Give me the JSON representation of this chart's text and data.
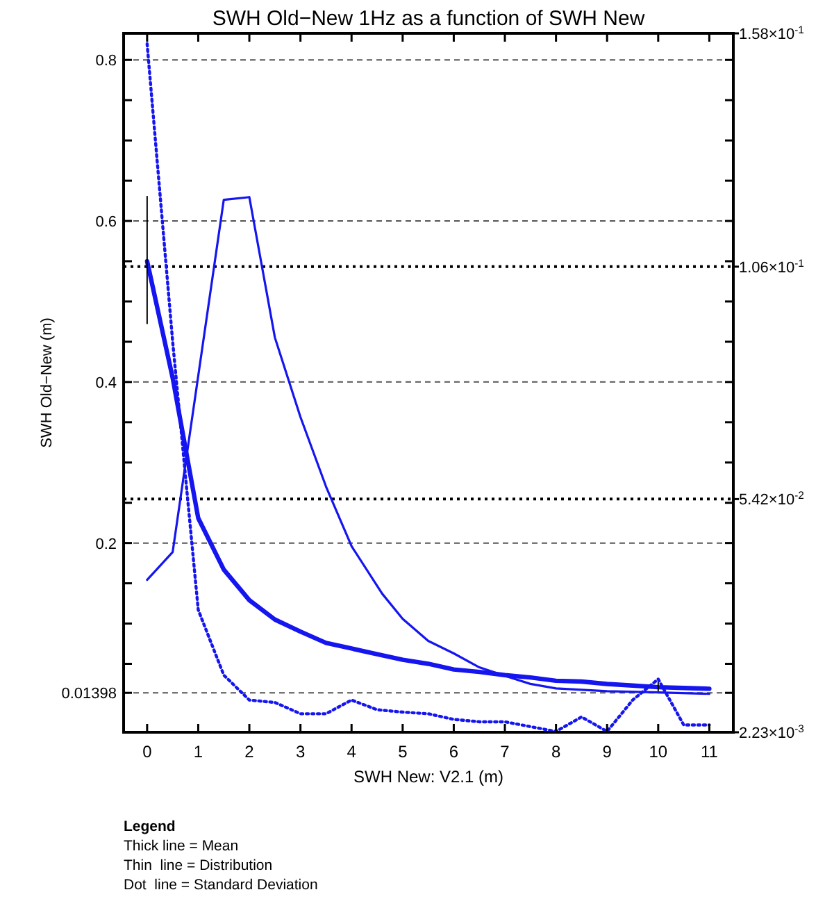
{
  "chart_data": {
    "type": "line",
    "title": "SWH Old−New 1Hz as a function of SWH New",
    "xlabel": "SWH New: V2.1 (m)",
    "ylabel": "SWH Old−New (m)",
    "x": [
      0,
      0.5,
      1,
      1.5,
      2,
      2.5,
      3,
      3.5,
      4,
      4.5,
      5,
      5.5,
      6,
      6.5,
      7,
      7.5,
      8,
      8.5,
      9,
      9.5,
      10,
      10.5,
      11
    ],
    "xlim": [
      -0.46,
      11.47
    ],
    "xticks": [
      0,
      1,
      2,
      3,
      4,
      5,
      6,
      7,
      8,
      9,
      10,
      11
    ],
    "ylim": [
      -0.035,
      0.833
    ],
    "yticks": [
      0.01398,
      {
        "value": 0.05,
        "label": null
      },
      {
        "value": 0.1,
        "label": null
      },
      {
        "value": 0.15,
        "label": null
      },
      0.2,
      {
        "value": 0.25,
        "label": null
      },
      {
        "value": 0.3,
        "label": null
      },
      {
        "value": 0.35,
        "label": null
      },
      0.4,
      {
        "value": 0.45,
        "label": null
      },
      {
        "value": 0.5,
        "label": null
      },
      {
        "value": 0.55,
        "label": null
      },
      0.6,
      {
        "value": 0.65,
        "label": null
      },
      {
        "value": 0.7,
        "label": null
      },
      {
        "value": 0.75,
        "label": null
      },
      0.8
    ],
    "y2lim": [
      0.00223,
      0.158
    ],
    "y2ticks": [
      {
        "value": 0.00223,
        "label": "2.23×10$^{-3}$"
      },
      {
        "value": 0.0542,
        "label": "5.42×10$^{-2}$"
      },
      {
        "value": 0.106,
        "label": "1.06×10$^{-1}$"
      },
      {
        "value": 0.158,
        "label": "1.58×10$^{-1}$"
      }
    ],
    "grid": "y",
    "marker": "none",
    "series": [
      {
        "color": "#1515f0",
        "line_style": "solid",
        "values": [
          0.55,
          0.405,
          0.231,
          0.167,
          0.129,
          0.105,
          0.09,
          0.076,
          0.069,
          0.062,
          0.055,
          0.05,
          0.043,
          0.04,
          0.036,
          0.033,
          0.029,
          0.028,
          0.025,
          0.023,
          0.021,
          0.02,
          0.019
        ],
        "errors": [
          [
            0.472,
            0.631
          ],
          null,
          null,
          null,
          null,
          null,
          null,
          null,
          null,
          null,
          null,
          null,
          null,
          null,
          null,
          null,
          null,
          null,
          null,
          null,
          [
            0.016,
            0.031
          ],
          null,
          null
        ]
      },
      {
        "color": "#1515f0",
        "line_style": "solid",
        "axis": "y2",
        "x": [
          0,
          0.5,
          1.5,
          2,
          2.5,
          3,
          3.5,
          4,
          4.6,
          5,
          5.5,
          6,
          6.5,
          7,
          7.5,
          8,
          9,
          10,
          11
        ],
        "values": [
          0.0362,
          0.0424,
          0.1209,
          0.1215,
          0.0902,
          0.0725,
          0.057,
          0.0437,
          0.0331,
          0.0275,
          0.0226,
          0.0198,
          0.0167,
          0.0148,
          0.013,
          0.012,
          0.0114,
          0.0111,
          0.0108
        ]
      },
      {
        "color": "#1515f0",
        "line_style": "dotted",
        "values": [
          0.82,
          0.45,
          0.117,
          0.036,
          0.005,
          0.002,
          -0.012,
          -0.012,
          0.005,
          -0.007,
          -0.01,
          -0.012,
          -0.019,
          -0.022,
          -0.022,
          -0.028,
          -0.034,
          -0.016,
          -0.034,
          0.005,
          0.031,
          -0.026,
          -0.026
        ]
      }
    ],
    "annotations": [
      "Legend",
      "Thick line = Mean",
      "Thin  line = Distribution",
      "Dot  line = Standard Deviation"
    ]
  }
}
